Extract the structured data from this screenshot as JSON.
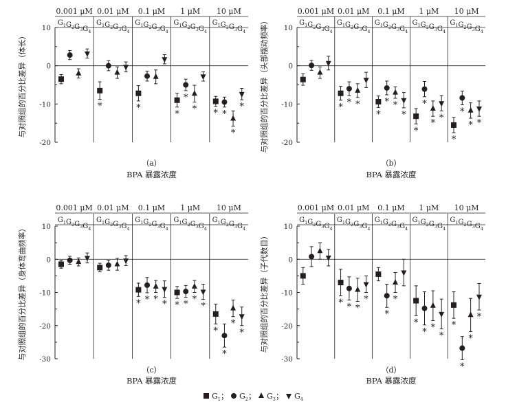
{
  "chart_data": [
    {
      "type": "scatter",
      "panel": "（a）",
      "ylabel": "与对照组的百分比差异（体长）",
      "xlabel": "BPA 暴露浓度",
      "ylim": [
        -20,
        10
      ],
      "yticks": [
        10,
        0,
        -10,
        -20
      ],
      "categories": [
        "0.001 μM",
        "0.01 μM",
        "0.1 μM",
        "1 μM",
        "10 μM"
      ],
      "groups": [
        "G1",
        "G2",
        "G3",
        "G4"
      ],
      "series": [
        {
          "name": "G1",
          "values": [
            -3.5,
            -6.5,
            -7.2,
            -9.0,
            -9.3
          ],
          "err": [
            1.2,
            2.3,
            2.0,
            1.8,
            1.3
          ],
          "sig": [
            false,
            true,
            true,
            true,
            true
          ]
        },
        {
          "name": "G2",
          "values": [
            2.8,
            0.0,
            -2.7,
            -5.0,
            -9.5
          ],
          "err": [
            1.2,
            1.3,
            1.3,
            1.5,
            1.3
          ],
          "sig": [
            false,
            false,
            false,
            true,
            true
          ]
        },
        {
          "name": "G3",
          "values": [
            -2.0,
            -1.8,
            -2.9,
            -7.3,
            -13.8
          ],
          "err": [
            1.2,
            1.5,
            1.8,
            2.2,
            2.0
          ],
          "sig": [
            false,
            false,
            false,
            true,
            true
          ]
        },
        {
          "name": "G4",
          "values": [
            3.2,
            -0.3,
            1.7,
            -2.8,
            -7.4
          ],
          "err": [
            1.2,
            1.3,
            1.2,
            1.2,
            1.5
          ],
          "sig": [
            false,
            false,
            false,
            false,
            true
          ]
        }
      ]
    },
    {
      "type": "scatter",
      "panel": "（b）",
      "ylabel": "与对照组的百分比差异（头部摆动频率）",
      "xlabel": "BPA 暴露浓度",
      "ylim": [
        -20,
        10
      ],
      "yticks": [
        10,
        0,
        -10,
        -20
      ],
      "categories": [
        "0.001 μM",
        "0.01 μM",
        "0.1 μM",
        "1 μM",
        "10 μM"
      ],
      "groups": [
        "G1",
        "G2",
        "G3",
        "G4"
      ],
      "series": [
        {
          "name": "G1",
          "values": [
            -3.6,
            -7.2,
            -9.4,
            -13.2,
            -15.5
          ],
          "err": [
            1.5,
            1.8,
            1.5,
            2.0,
            2.0
          ],
          "sig": [
            false,
            true,
            true,
            true,
            true
          ]
        },
        {
          "name": "G2",
          "values": [
            0.1,
            -6.0,
            -5.8,
            -6.1,
            -8.4
          ],
          "err": [
            1.3,
            1.8,
            1.8,
            2.0,
            1.8
          ],
          "sig": [
            false,
            true,
            true,
            true,
            true
          ]
        },
        {
          "name": "G3",
          "values": [
            -1.8,
            -6.5,
            -7.0,
            -11.2,
            -11.7
          ],
          "err": [
            1.5,
            1.8,
            1.5,
            2.0,
            2.0
          ],
          "sig": [
            false,
            true,
            true,
            true,
            true
          ]
        },
        {
          "name": "G4",
          "values": [
            0.7,
            -3.7,
            -9.0,
            -9.8,
            -11.2
          ],
          "err": [
            1.8,
            2.0,
            2.0,
            2.0,
            2.0
          ],
          "sig": [
            false,
            false,
            true,
            true,
            true
          ]
        }
      ]
    },
    {
      "type": "scatter",
      "panel": "（c）",
      "ylabel": "与对照组的百分比差异（身体弯曲频率）",
      "xlabel": "BPA 暴露浓度",
      "ylim": [
        -30,
        10
      ],
      "yticks": [
        10,
        0,
        -10,
        -20,
        -30
      ],
      "categories": [
        "0.001 μM",
        "0.01 μM",
        "0.1 μM",
        "1 μM",
        "10 μM"
      ],
      "groups": [
        "G1",
        "G2",
        "G3",
        "G4"
      ],
      "series": [
        {
          "name": "G1",
          "values": [
            -1.5,
            -2.5,
            -9.2,
            -10.0,
            -16.5
          ],
          "err": [
            1.2,
            1.3,
            2.0,
            1.8,
            3.0
          ],
          "sig": [
            false,
            false,
            true,
            true,
            true
          ]
        },
        {
          "name": "G2",
          "values": [
            -0.3,
            -1.8,
            -7.8,
            -9.7,
            -23.0
          ],
          "err": [
            1.2,
            1.5,
            2.3,
            1.8,
            3.5
          ],
          "sig": [
            false,
            false,
            true,
            true,
            true
          ]
        },
        {
          "name": "G3",
          "values": [
            -0.8,
            -1.5,
            -8.2,
            -8.2,
            -14.8
          ],
          "err": [
            1.2,
            1.8,
            1.8,
            1.8,
            2.5
          ],
          "sig": [
            false,
            false,
            true,
            true,
            true
          ]
        },
        {
          "name": "G4",
          "values": [
            0.4,
            -0.4,
            -9.0,
            -9.8,
            -17.2
          ],
          "err": [
            1.5,
            1.5,
            2.5,
            2.3,
            2.8
          ],
          "sig": [
            false,
            false,
            true,
            true,
            true
          ]
        }
      ]
    },
    {
      "type": "scatter",
      "panel": "（d）",
      "ylabel": "与对照组的百分比差异（子代数目）",
      "xlabel": "BPA 暴露浓度",
      "ylim": [
        -30,
        10
      ],
      "yticks": [
        10,
        0,
        -10,
        -20,
        -30
      ],
      "categories": [
        "0.001 μM",
        "0.01 μM",
        "0.1 μM",
        "1 μM",
        "10 μM"
      ],
      "groups": [
        "G1",
        "G2",
        "G3",
        "G4"
      ],
      "series": [
        {
          "name": "G1",
          "values": [
            -5.0,
            -7.0,
            -4.5,
            -12.5,
            -13.8
          ],
          "err": [
            2.5,
            4.0,
            2.0,
            4.5,
            4.0
          ],
          "sig": [
            false,
            true,
            false,
            true,
            true
          ]
        },
        {
          "name": "G2",
          "values": [
            0.8,
            -8.8,
            -11.0,
            -14.8,
            -26.8
          ],
          "err": [
            3.0,
            3.5,
            3.5,
            5.0,
            3.5
          ],
          "sig": [
            false,
            true,
            true,
            true,
            true
          ]
        },
        {
          "name": "G3",
          "values": [
            2.5,
            -9.2,
            -7.0,
            -14.0,
            -16.8
          ],
          "err": [
            2.5,
            3.5,
            3.0,
            4.5,
            5.0
          ],
          "sig": [
            false,
            true,
            true,
            true,
            true
          ]
        },
        {
          "name": "G4",
          "values": [
            0.5,
            -7.5,
            -4.0,
            -16.5,
            -11.3
          ],
          "err": [
            2.5,
            2.5,
            4.0,
            4.5,
            4.0
          ],
          "sig": [
            false,
            true,
            false,
            true,
            true
          ]
        }
      ]
    }
  ],
  "legend": {
    "items": [
      {
        "symbol": "square",
        "label": "G",
        "sub": "1",
        "sep": "；"
      },
      {
        "symbol": "circle",
        "label": "G",
        "sub": "2",
        "sep": "；"
      },
      {
        "symbol": "triangle-up",
        "label": "G",
        "sub": "3",
        "sep": "；"
      },
      {
        "symbol": "triangle-down",
        "label": "G",
        "sub": "4",
        "sep": ""
      }
    ]
  },
  "significance_mark": "*"
}
